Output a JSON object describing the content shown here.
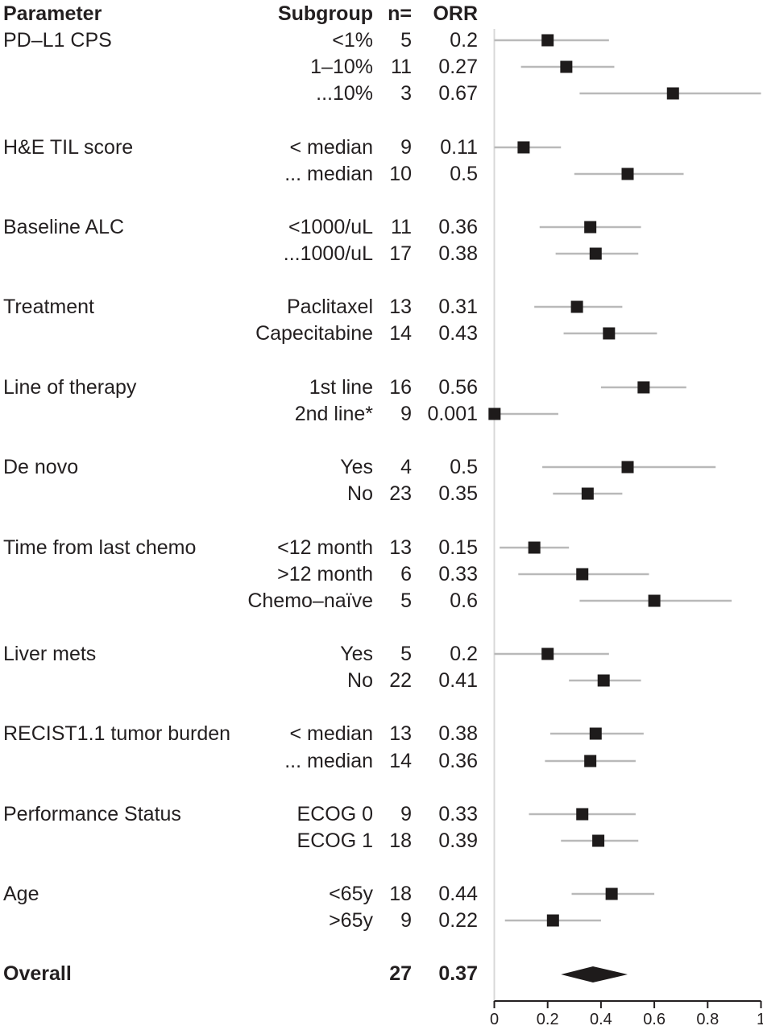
{
  "chart_data": {
    "type": "scatter",
    "subtype": "forest-plot",
    "title": "",
    "xlabel": "",
    "ylabel": "",
    "xlim": [
      0,
      1
    ],
    "grid": false,
    "legend": "none",
    "reference_line_x": 0,
    "x_ticks": [
      0,
      0.2,
      0.4,
      0.6,
      0.8,
      1
    ],
    "x_tick_labels": [
      "0",
      "0.2",
      "0.4",
      "0.6",
      "0.8",
      "1"
    ],
    "columns": [
      "Parameter",
      "Subgroup",
      "n=",
      "ORR"
    ],
    "rows": [
      {
        "parameter": "PD–L1 CPS",
        "subgroup": "<1%",
        "n": 5,
        "orr": "0.2",
        "estimate": 0.2,
        "ci_low": 0.0,
        "ci_high": 0.43
      },
      {
        "parameter": "",
        "subgroup": "1–10%",
        "n": 11,
        "orr": "0.27",
        "estimate": 0.27,
        "ci_low": 0.1,
        "ci_high": 0.45
      },
      {
        "parameter": "",
        "subgroup": "...10%",
        "n": 3,
        "orr": "0.67",
        "estimate": 0.67,
        "ci_low": 0.32,
        "ci_high": 1.0
      },
      {
        "parameter": "H&E TIL score",
        "subgroup": "< median",
        "n": 9,
        "orr": "0.11",
        "estimate": 0.11,
        "ci_low": 0.0,
        "ci_high": 0.25
      },
      {
        "parameter": "",
        "subgroup": "... median",
        "n": 10,
        "orr": "0.5",
        "estimate": 0.5,
        "ci_low": 0.3,
        "ci_high": 0.71
      },
      {
        "parameter": "Baseline ALC",
        "subgroup": "<1000/uL",
        "n": 11,
        "orr": "0.36",
        "estimate": 0.36,
        "ci_low": 0.17,
        "ci_high": 0.55
      },
      {
        "parameter": "",
        "subgroup": "...1000/uL",
        "n": 17,
        "orr": "0.38",
        "estimate": 0.38,
        "ci_low": 0.23,
        "ci_high": 0.54
      },
      {
        "parameter": "Treatment",
        "subgroup": "Paclitaxel",
        "n": 13,
        "orr": "0.31",
        "estimate": 0.31,
        "ci_low": 0.15,
        "ci_high": 0.48
      },
      {
        "parameter": "",
        "subgroup": "Capecitabine",
        "n": 14,
        "orr": "0.43",
        "estimate": 0.43,
        "ci_low": 0.26,
        "ci_high": 0.61
      },
      {
        "parameter": "Line of therapy",
        "subgroup": "1st line",
        "n": 16,
        "orr": "0.56",
        "estimate": 0.56,
        "ci_low": 0.4,
        "ci_high": 0.72
      },
      {
        "parameter": "",
        "subgroup": "2nd line*",
        "n": 9,
        "orr": "0.001",
        "estimate": 0.001,
        "ci_low": 0.0,
        "ci_high": 0.24
      },
      {
        "parameter": "De novo",
        "subgroup": "Yes",
        "n": 4,
        "orr": "0.5",
        "estimate": 0.5,
        "ci_low": 0.18,
        "ci_high": 0.83
      },
      {
        "parameter": "",
        "subgroup": "No",
        "n": 23,
        "orr": "0.35",
        "estimate": 0.35,
        "ci_low": 0.22,
        "ci_high": 0.48
      },
      {
        "parameter": "Time from last chemo",
        "subgroup": "<12 month",
        "n": 13,
        "orr": "0.15",
        "estimate": 0.15,
        "ci_low": 0.02,
        "ci_high": 0.28
      },
      {
        "parameter": "",
        "subgroup": ">12 month",
        "n": 6,
        "orr": "0.33",
        "estimate": 0.33,
        "ci_low": 0.09,
        "ci_high": 0.58
      },
      {
        "parameter": "",
        "subgroup": "Chemo–naïve",
        "n": 5,
        "orr": "0.6",
        "estimate": 0.6,
        "ci_low": 0.32,
        "ci_high": 0.89
      },
      {
        "parameter": "Liver mets",
        "subgroup": "Yes",
        "n": 5,
        "orr": "0.2",
        "estimate": 0.2,
        "ci_low": 0.0,
        "ci_high": 0.43
      },
      {
        "parameter": "",
        "subgroup": "No",
        "n": 22,
        "orr": "0.41",
        "estimate": 0.41,
        "ci_low": 0.28,
        "ci_high": 0.55
      },
      {
        "parameter": "RECIST1.1 tumor burden",
        "subgroup": "< median",
        "n": 13,
        "orr": "0.38",
        "estimate": 0.38,
        "ci_low": 0.21,
        "ci_high": 0.56
      },
      {
        "parameter": "",
        "subgroup": "... median",
        "n": 14,
        "orr": "0.36",
        "estimate": 0.36,
        "ci_low": 0.19,
        "ci_high": 0.53
      },
      {
        "parameter": "Performance Status",
        "subgroup": "ECOG 0",
        "n": 9,
        "orr": "0.33",
        "estimate": 0.33,
        "ci_low": 0.13,
        "ci_high": 0.53
      },
      {
        "parameter": "",
        "subgroup": "ECOG 1",
        "n": 18,
        "orr": "0.39",
        "estimate": 0.39,
        "ci_low": 0.25,
        "ci_high": 0.54
      },
      {
        "parameter": "Age",
        "subgroup": "<65y",
        "n": 18,
        "orr": "0.44",
        "estimate": 0.44,
        "ci_low": 0.29,
        "ci_high": 0.6
      },
      {
        "parameter": "",
        "subgroup": ">65y",
        "n": 9,
        "orr": "0.22",
        "estimate": 0.22,
        "ci_low": 0.04,
        "ci_high": 0.4
      }
    ],
    "overall": {
      "label": "Overall",
      "n": "27",
      "orr": "0.37",
      "estimate": 0.37,
      "ci_low": 0.25,
      "ci_high": 0.5
    },
    "colors": {
      "marker": "#1e1b1b",
      "ci_line": "#b9b9b9",
      "reference_line": "#d8d8d8",
      "axis": "#231f20",
      "text": "#231f20"
    }
  }
}
